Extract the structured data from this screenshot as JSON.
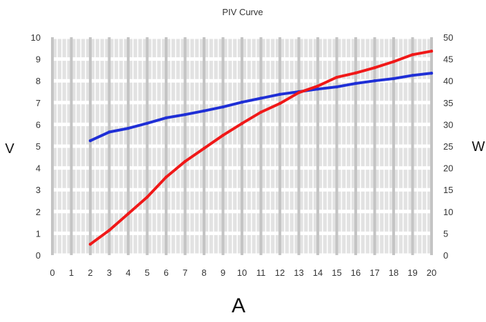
{
  "chart_data": {
    "type": "line",
    "title": "PIV Curve",
    "xlabel": "A",
    "ylabel": "V",
    "y2label": "W",
    "xlim": [
      0,
      20
    ],
    "ylim": [
      0,
      10
    ],
    "y2lim": [
      0,
      50
    ],
    "x_ticks": [
      "0",
      "1",
      "2",
      "3",
      "4",
      "5",
      "6",
      "7",
      "8",
      "9",
      "10",
      "11",
      "12",
      "13",
      "14",
      "15",
      "16",
      "17",
      "18",
      "19",
      "20"
    ],
    "y_ticks": [
      "0",
      "1",
      "2",
      "3",
      "4",
      "5",
      "6",
      "7",
      "8",
      "9",
      "10"
    ],
    "y2_ticks": [
      "0",
      "5",
      "10",
      "15",
      "20",
      "25",
      "30",
      "35",
      "40",
      "45",
      "50"
    ],
    "grid": true,
    "legend": "none",
    "x": [
      2,
      3,
      4,
      5,
      6,
      7,
      8,
      9,
      10,
      11,
      12,
      13,
      14,
      15,
      16,
      17,
      18,
      19,
      20
    ],
    "series": [
      {
        "axis": "left",
        "color": "#1f2fd6",
        "values": [
          5.25,
          5.65,
          5.82,
          6.05,
          6.3,
          6.45,
          6.62,
          6.8,
          7.02,
          7.2,
          7.38,
          7.5,
          7.62,
          7.72,
          7.88,
          8.0,
          8.1,
          8.25,
          8.35
        ]
      },
      {
        "axis": "right",
        "color": "#f01818",
        "values": [
          2.5,
          5.7,
          9.5,
          13.3,
          17.9,
          21.5,
          24.5,
          27.5,
          30.2,
          32.8,
          34.8,
          37.3,
          38.8,
          40.8,
          41.8,
          43,
          44.4,
          46,
          46.8
        ]
      }
    ]
  }
}
